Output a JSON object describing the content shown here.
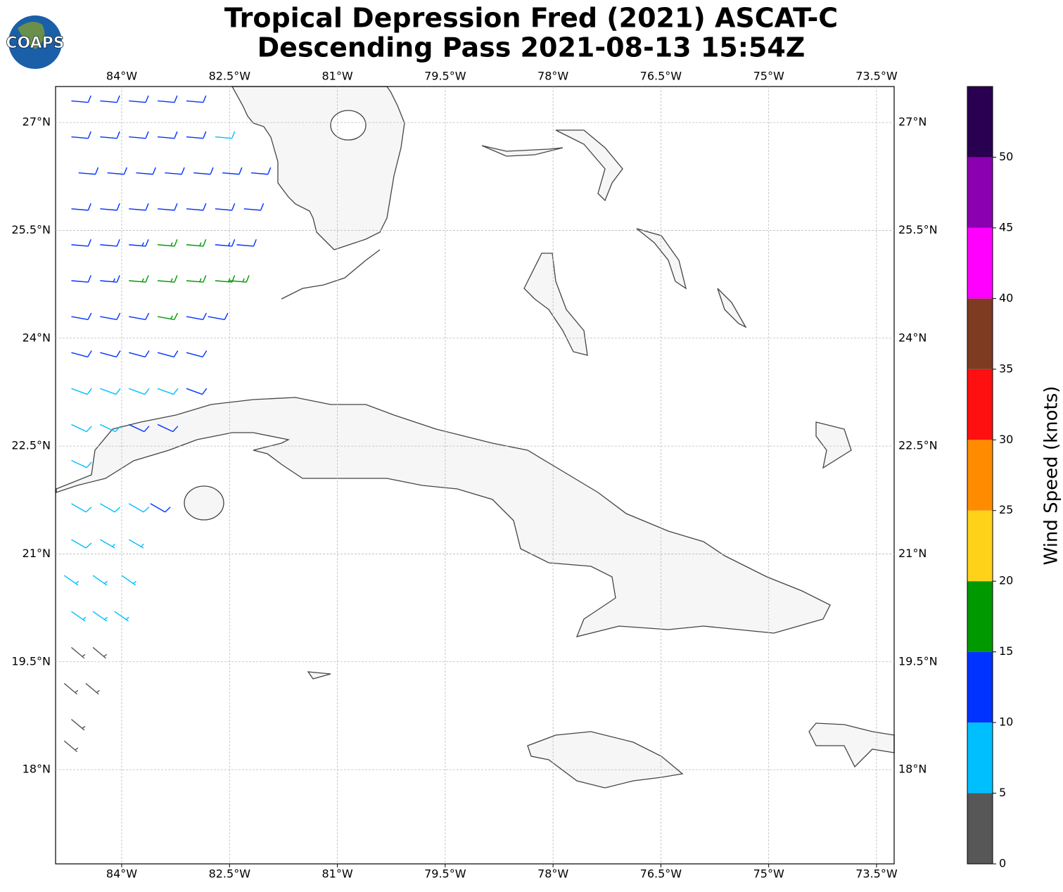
{
  "header": {
    "logo": "COAPS",
    "title": [
      "Tropical Depression Fred (2021) ASCAT-C",
      "Descending Pass 2021-08-13 15:54Z"
    ]
  },
  "map": {
    "type": "wind-barbs",
    "lonlim": [
      -84.92,
      -73.255
    ],
    "latlim": [
      16.69,
      27.5
    ],
    "grid": true,
    "lonticks": [
      {
        "value": -84,
        "label": "84°W"
      },
      {
        "value": -82.5,
        "label": "82.5°W"
      },
      {
        "value": -81,
        "label": "81°W"
      },
      {
        "value": -79.5,
        "label": "79.5°W"
      },
      {
        "value": -78,
        "label": "78°W"
      },
      {
        "value": -76.5,
        "label": "76.5°W"
      },
      {
        "value": -75,
        "label": "75°W"
      },
      {
        "value": -73.5,
        "label": "73.5°W"
      }
    ],
    "latticks": [
      {
        "value": 27,
        "label": "27°N"
      },
      {
        "value": 25.5,
        "label": "25.5°N"
      },
      {
        "value": 24,
        "label": "24°N"
      },
      {
        "value": 22.5,
        "label": "22.5°N"
      },
      {
        "value": 21,
        "label": "21°N"
      },
      {
        "value": 19.5,
        "label": "19.5°N"
      },
      {
        "value": 18,
        "label": "18°N"
      }
    ],
    "barbs": {
      "lon": [
        -84.7,
        -84.3,
        -83.9,
        -83.5,
        -83.1,
        -84.7,
        -84.3,
        -83.9,
        -83.5,
        -83.1,
        -82.7,
        -84.6,
        -84.2,
        -83.8,
        -83.4,
        -83.0,
        -82.6,
        -82.2,
        -84.7,
        -84.3,
        -83.9,
        -83.5,
        -83.1,
        -82.7,
        -82.3,
        -84.7,
        -84.3,
        -83.9,
        -83.5,
        -83.1,
        -82.7,
        -82.4,
        -84.7,
        -84.3,
        -83.9,
        -83.5,
        -83.1,
        -82.7,
        -82.5,
        -84.7,
        -84.3,
        -83.9,
        -83.5,
        -83.1,
        -82.8,
        -84.7,
        -84.3,
        -83.9,
        -83.5,
        -83.1,
        -84.7,
        -84.3,
        -83.9,
        -83.5,
        -83.1,
        -84.7,
        -84.3,
        -83.9,
        -83.5,
        -84.7,
        -84.7,
        -84.3,
        -83.9,
        -83.6,
        -84.7,
        -84.3,
        -83.9,
        -84.8,
        -84.4,
        -84.0,
        -84.7,
        -84.4,
        -84.1,
        -84.7,
        -84.4,
        -84.8,
        -84.5,
        -84.7,
        -84.8
      ],
      "lat": [
        27.3,
        27.3,
        27.3,
        27.3,
        27.3,
        26.8,
        26.8,
        26.8,
        26.8,
        26.8,
        26.8,
        26.3,
        26.3,
        26.3,
        26.3,
        26.3,
        26.3,
        26.3,
        25.8,
        25.8,
        25.8,
        25.8,
        25.8,
        25.8,
        25.8,
        25.3,
        25.3,
        25.3,
        25.3,
        25.3,
        25.3,
        25.3,
        24.8,
        24.8,
        24.8,
        24.8,
        24.8,
        24.8,
        24.8,
        24.3,
        24.3,
        24.3,
        24.3,
        24.3,
        24.3,
        23.8,
        23.8,
        23.8,
        23.8,
        23.8,
        23.3,
        23.3,
        23.3,
        23.3,
        23.3,
        22.8,
        22.8,
        22.8,
        22.8,
        22.3,
        21.7,
        21.7,
        21.7,
        21.7,
        21.2,
        21.2,
        21.2,
        20.7,
        20.7,
        20.7,
        20.2,
        20.2,
        20.2,
        19.7,
        19.7,
        19.2,
        19.2,
        18.7,
        18.4
      ],
      "speed": [
        12,
        12,
        12,
        12,
        11,
        12,
        12,
        12,
        12,
        12,
        8,
        11,
        12,
        12,
        12,
        12,
        12,
        12,
        12,
        12,
        12,
        12,
        12,
        12,
        12,
        12,
        12,
        13,
        16,
        17,
        13,
        12,
        12,
        13,
        16,
        17,
        16,
        16,
        16,
        12,
        12,
        12,
        16,
        12,
        12,
        12,
        12,
        12,
        11,
        11,
        8,
        8,
        9,
        9,
        11,
        8,
        8,
        11,
        11,
        8,
        8,
        8,
        8,
        12,
        8,
        7,
        7,
        7,
        7,
        6,
        7,
        6,
        6,
        4,
        4,
        4,
        4,
        4,
        3
      ],
      "direction": [
        95,
        95,
        95,
        95,
        95,
        95,
        95,
        95,
        95,
        95,
        95,
        95,
        95,
        95,
        95,
        95,
        95,
        95,
        95,
        95,
        95,
        95,
        95,
        95,
        95,
        95,
        95,
        95,
        95,
        95,
        95,
        95,
        95,
        95,
        95,
        95,
        95,
        95,
        95,
        100,
        100,
        100,
        100,
        100,
        100,
        105,
        105,
        105,
        105,
        105,
        110,
        110,
        110,
        110,
        110,
        115,
        115,
        115,
        115,
        115,
        120,
        120,
        120,
        120,
        120,
        120,
        120,
        125,
        125,
        125,
        125,
        125,
        125,
        130,
        130,
        130,
        130,
        130,
        130
      ]
    }
  },
  "colorbar": {
    "label": "Wind Speed (knots)",
    "bounds": [
      0,
      5,
      10,
      15,
      20,
      25,
      30,
      35,
      40,
      45,
      50,
      55
    ],
    "colors": [
      "#575757",
      "#00bfff",
      "#0033ff",
      "#009900",
      "#ffd21a",
      "#ff8c00",
      "#ff1010",
      "#7f3a22",
      "#ff00ff",
      "#8b00b0",
      "#2a0052"
    ],
    "ticks": [
      0,
      5,
      10,
      15,
      20,
      25,
      30,
      35,
      40,
      45,
      50
    ]
  }
}
